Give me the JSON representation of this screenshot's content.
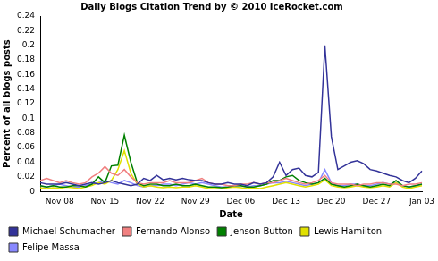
{
  "chart_data": {
    "type": "line",
    "title": "Daily Blogs Citation Trend by © 2010 IceRocket.com",
    "x_label": "Date",
    "y_label": "Percent of all blogs posts",
    "categories": [
      null,
      null,
      null,
      "Nov 08",
      null,
      null,
      null,
      null,
      null,
      null,
      "Nov 15",
      null,
      null,
      null,
      null,
      null,
      null,
      "Nov 22",
      null,
      null,
      null,
      null,
      null,
      null,
      "Nov 29",
      null,
      null,
      null,
      null,
      null,
      null,
      "Dec 06",
      null,
      null,
      null,
      null,
      null,
      null,
      "Dec 13",
      null,
      null,
      null,
      null,
      null,
      null,
      "Dec 20",
      null,
      null,
      null,
      null,
      null,
      null,
      "Dec 27",
      null,
      null,
      null,
      null,
      null,
      null,
      "Jan 03"
    ],
    "series": [
      {
        "name": "Michael Schumacher",
        "color": "#333399",
        "values": [
          0.012,
          0.01,
          0.01,
          0.01,
          0.012,
          0.01,
          0.008,
          0.01,
          0.012,
          0.01,
          0.012,
          0.015,
          0.012,
          0.01,
          0.008,
          0.01,
          0.018,
          0.015,
          0.022,
          0.016,
          0.018,
          0.016,
          0.018,
          0.016,
          0.015,
          0.015,
          0.012,
          0.01,
          0.01,
          0.012,
          0.01,
          0.01,
          0.008,
          0.012,
          0.01,
          0.012,
          0.02,
          0.04,
          0.022,
          0.03,
          0.032,
          0.022,
          0.02,
          0.026,
          0.2,
          0.075,
          0.03,
          0.035,
          0.04,
          0.042,
          0.038,
          0.03,
          0.028,
          0.025,
          0.022,
          0.02,
          0.015,
          0.012,
          0.018,
          0.028
        ]
      },
      {
        "name": "Fernando Alonso",
        "color": "#f08080",
        "values": [
          0.015,
          0.018,
          0.015,
          0.012,
          0.015,
          0.012,
          0.01,
          0.012,
          0.02,
          0.025,
          0.034,
          0.025,
          0.022,
          0.03,
          0.02,
          0.012,
          0.01,
          0.012,
          0.012,
          0.012,
          0.015,
          0.012,
          0.012,
          0.012,
          0.015,
          0.018,
          0.012,
          0.01,
          0.01,
          0.008,
          0.008,
          0.01,
          0.01,
          0.012,
          0.01,
          0.012,
          0.012,
          0.015,
          0.018,
          0.015,
          0.012,
          0.01,
          0.012,
          0.015,
          0.022,
          0.012,
          0.01,
          0.01,
          0.01,
          0.008,
          0.01,
          0.01,
          0.012,
          0.012,
          0.01,
          0.01,
          0.008,
          0.01,
          0.01,
          0.012
        ]
      },
      {
        "name": "Jenson Button",
        "color": "#008000",
        "values": [
          0.008,
          0.006,
          0.008,
          0.006,
          0.006,
          0.008,
          0.008,
          0.006,
          0.01,
          0.02,
          0.012,
          0.035,
          0.036,
          0.077,
          0.04,
          0.012,
          0.008,
          0.01,
          0.01,
          0.008,
          0.008,
          0.01,
          0.008,
          0.008,
          0.01,
          0.008,
          0.006,
          0.006,
          0.005,
          0.006,
          0.008,
          0.008,
          0.006,
          0.006,
          0.008,
          0.01,
          0.015,
          0.015,
          0.02,
          0.022,
          0.015,
          0.012,
          0.01,
          0.012,
          0.018,
          0.01,
          0.008,
          0.006,
          0.008,
          0.01,
          0.008,
          0.006,
          0.008,
          0.01,
          0.008,
          0.015,
          0.008,
          0.006,
          0.008,
          0.01
        ]
      },
      {
        "name": "Lewis Hamilton",
        "color": "#e0e000",
        "values": [
          0.005,
          0.004,
          0.005,
          0.004,
          0.006,
          0.005,
          0.004,
          0.006,
          0.008,
          0.012,
          0.01,
          0.015,
          0.03,
          0.056,
          0.025,
          0.01,
          0.006,
          0.008,
          0.006,
          0.005,
          0.006,
          0.005,
          0.006,
          0.006,
          0.008,
          0.006,
          0.004,
          0.004,
          0.004,
          0.005,
          0.006,
          0.005,
          0.004,
          0.005,
          0.004,
          0.006,
          0.008,
          0.01,
          0.012,
          0.01,
          0.008,
          0.006,
          0.008,
          0.01,
          0.016,
          0.008,
          0.006,
          0.005,
          0.006,
          0.008,
          0.006,
          0.005,
          0.006,
          0.008,
          0.006,
          0.012,
          0.006,
          0.004,
          0.006,
          0.008
        ]
      },
      {
        "name": "Felipe Massa",
        "color": "#8888ff",
        "values": [
          0.008,
          0.006,
          0.008,
          0.01,
          0.008,
          0.006,
          0.006,
          0.008,
          0.01,
          0.012,
          0.015,
          0.012,
          0.01,
          0.015,
          0.012,
          0.008,
          0.006,
          0.008,
          0.008,
          0.01,
          0.01,
          0.008,
          0.01,
          0.012,
          0.01,
          0.012,
          0.01,
          0.008,
          0.006,
          0.006,
          0.008,
          0.008,
          0.006,
          0.008,
          0.008,
          0.01,
          0.012,
          0.012,
          0.014,
          0.012,
          0.01,
          0.008,
          0.01,
          0.012,
          0.03,
          0.012,
          0.008,
          0.008,
          0.01,
          0.01,
          0.008,
          0.008,
          0.01,
          0.012,
          0.01,
          0.012,
          0.008,
          0.006,
          0.008,
          0.01
        ]
      }
    ],
    "ylim": [
      0,
      0.24
    ],
    "yticks": [
      0,
      0.02,
      0.04,
      0.06,
      0.08,
      0.1,
      0.12,
      0.14,
      0.16,
      0.18,
      0.2,
      0.22,
      0.24
    ],
    "grid": false,
    "legend": "bottom"
  }
}
